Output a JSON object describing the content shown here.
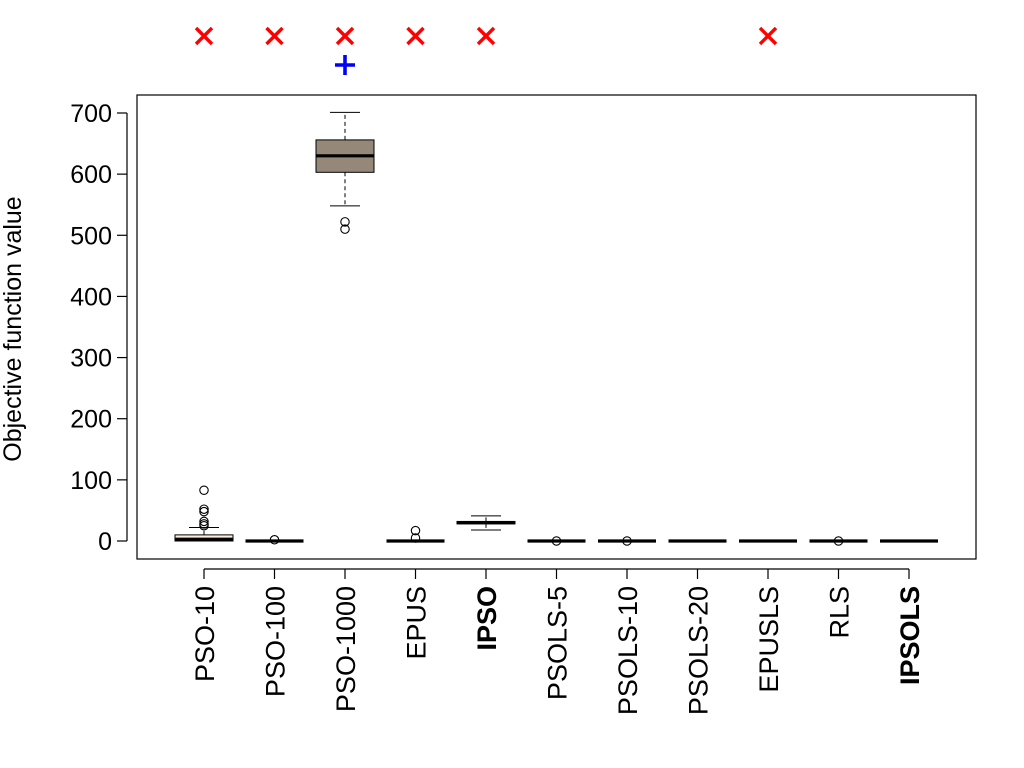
{
  "chart_data": {
    "type": "box",
    "title": "",
    "xlabel": "",
    "ylabel": "Objective function value",
    "ylim": [
      -25,
      770
    ],
    "y_ticks": [
      "0",
      "100",
      "200",
      "300",
      "400",
      "500",
      "600",
      "700"
    ],
    "y_tick_values": [
      0,
      100,
      200,
      300,
      400,
      500,
      600,
      700
    ],
    "categories": [
      "PSO-10",
      "PSO-100",
      "PSO-1000",
      "EPUS",
      "IPSO",
      "PSOLS-5",
      "PSOLS-10",
      "PSOLS-20",
      "EPUSLS",
      "RLS",
      "IPSOLS"
    ],
    "bold_categories": [
      "IPSO",
      "IPSOLS"
    ],
    "colors": {
      "box_fill_light": "#fff0dc",
      "box_fill_dark": "#958878",
      "x_marker": "#ff0000",
      "plus_marker": "#0000ff"
    },
    "boxes": [
      {
        "name": "PSO-10",
        "whisker_low": 0,
        "q1": 0,
        "median": 3,
        "q3": 10,
        "whisker_high": 22,
        "outliers": [
          83,
          52,
          48,
          32,
          28,
          25
        ],
        "fill": "light"
      },
      {
        "name": "PSO-100",
        "whisker_low": 0,
        "q1": 0,
        "median": 0,
        "q3": 0,
        "whisker_high": 0,
        "outliers": [
          2
        ],
        "fill": "light"
      },
      {
        "name": "PSO-1000",
        "whisker_low": 548,
        "q1": 603,
        "median": 630,
        "q3": 656,
        "whisker_high": 701,
        "outliers": [
          522,
          510
        ],
        "fill": "dark"
      },
      {
        "name": "EPUS",
        "whisker_low": 0,
        "q1": 0,
        "median": 0,
        "q3": 0,
        "whisker_high": 0,
        "outliers": [
          17,
          5
        ],
        "fill": "light"
      },
      {
        "name": "IPSO",
        "whisker_low": 18,
        "q1": 28,
        "median": 30,
        "q3": 32,
        "whisker_high": 41,
        "outliers": [],
        "fill": "light"
      },
      {
        "name": "PSOLS-5",
        "whisker_low": 0,
        "q1": 0,
        "median": 0,
        "q3": 0,
        "whisker_high": 0,
        "outliers": [
          0
        ],
        "fill": "light"
      },
      {
        "name": "PSOLS-10",
        "whisker_low": 0,
        "q1": 0,
        "median": 0,
        "q3": 0,
        "whisker_high": 0,
        "outliers": [
          0
        ],
        "fill": "light"
      },
      {
        "name": "PSOLS-20",
        "whisker_low": 0,
        "q1": 0,
        "median": 0,
        "q3": 0,
        "whisker_high": 0,
        "outliers": [],
        "fill": "light"
      },
      {
        "name": "EPUSLS",
        "whisker_low": 0,
        "q1": 0,
        "median": 0,
        "q3": 0,
        "whisker_high": 0,
        "outliers": [],
        "fill": "light"
      },
      {
        "name": "RLS",
        "whisker_low": 0,
        "q1": 0,
        "median": 0,
        "q3": 0,
        "whisker_high": 0,
        "outliers": [
          0
        ],
        "fill": "light"
      },
      {
        "name": "IPSOLS",
        "whisker_low": 0,
        "q1": 0,
        "median": 0,
        "q3": 0,
        "whisker_high": 0,
        "outliers": [],
        "fill": "light"
      }
    ],
    "markers": {
      "x_over": [
        "PSO-10",
        "PSO-100",
        "PSO-1000",
        "EPUS",
        "IPSO",
        "EPUSLS"
      ],
      "plus_over": [
        "PSO-1000"
      ]
    }
  }
}
